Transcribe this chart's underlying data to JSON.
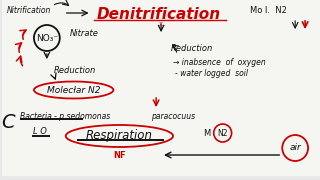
{
  "bg_color": "#e8e8e8",
  "title_text": "Denitrification",
  "mol_n2_label": "Mo l.  N2",
  "nitrification_text": "Nitrification",
  "nitrate_text": "Nitrate",
  "no3_text": "NO₃⁻",
  "reduction1_text": "Reduction",
  "reduction2_text": "Reduction",
  "molecular_n2_text": "Molecłar N2",
  "inabsence_text": "→ inabsence  of  oxygen",
  "waterlogged_text": "- water logged  soil",
  "bacteria_text": "Bacteria - p sedomonas",
  "paracocuus_text": "paracocuus",
  "lo_text": "L O",
  "respiration_text": "Respiration",
  "nk_text": "NF",
  "m_text": "M",
  "n2_circle_text": "N2",
  "air_text": "air",
  "red": "#cc0000",
  "black": "#111111",
  "white": "#ffffff",
  "title_fontsize": 11,
  "body_fontsize": 6,
  "small_fontsize": 5.5
}
